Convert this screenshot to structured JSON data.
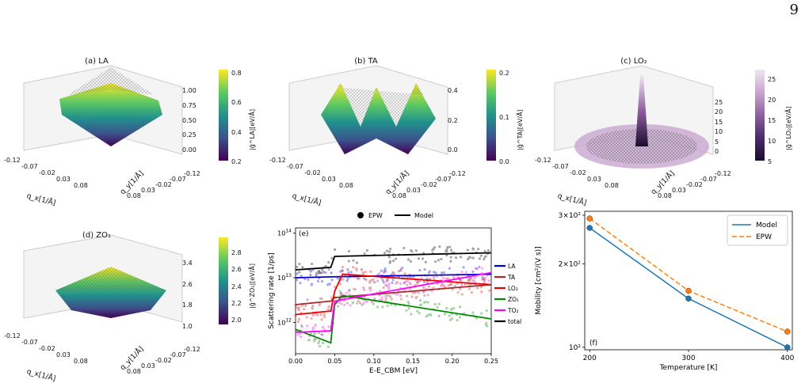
{
  "page_number": "9",
  "colors": {
    "viridis": [
      "#440154",
      "#3b528b",
      "#21918c",
      "#5ec962",
      "#fde725"
    ],
    "purple": [
      "#f0e6f0",
      "#c9a6cf",
      "#8e5fa0",
      "#4b2a6b",
      "#1a0d2e"
    ]
  },
  "panel_a": {
    "title": "(a) LA",
    "z_ticks": [
      "1.00",
      "0.75",
      "0.50",
      "0.25",
      "0.00"
    ],
    "cbar_ticks": [
      "0.8",
      "0.6",
      "0.4",
      "0.2"
    ],
    "cbar_label": "|g̃^LA|[eV/Å]",
    "x_ticks": [
      "-0.12",
      "-0.07",
      "-0.02",
      "0.03",
      "0.08"
    ],
    "y_ticks": [
      "0.08",
      "0.03",
      "-0.02",
      "-0.07",
      "-0.12"
    ],
    "x_label": "q_x[1/Å]",
    "y_label": "q_y[1/Å]"
  },
  "panel_b": {
    "title": "(b) TA",
    "z_ticks": [
      "0.4",
      "0.2",
      "0.0"
    ],
    "cbar_ticks": [
      "0.2",
      "0.1",
      "0.0"
    ],
    "cbar_label": "|g̃^TA|[eV/Å]",
    "x_ticks": [
      "-0.12",
      "-0.07",
      "-0.02",
      "0.03",
      "0.08"
    ],
    "y_ticks": [
      "0.08",
      "0.03",
      "-0.02",
      "-0.07",
      "-0.12"
    ],
    "x_label": "q_x[1/Å]",
    "y_label": "q_y[1/Å]"
  },
  "panel_c": {
    "title": "(c) LO₂",
    "z_ticks": [
      "25",
      "20",
      "15",
      "10",
      "5",
      "0"
    ],
    "cbar_ticks": [
      "25",
      "20",
      "15",
      "10",
      "5"
    ],
    "cbar_label": "|g̃^LO₂|[eV/Å]",
    "x_ticks": [
      "-0.12",
      "-0.07",
      "-0.02",
      "0.03",
      "0.08"
    ],
    "y_ticks": [
      "0.08",
      "0.03",
      "-0.02",
      "-0.07",
      "-0.12"
    ],
    "x_label": "q_x[1/Å]",
    "y_label": "q_y[1/Å]"
  },
  "panel_d": {
    "title": "(d) ZO₁",
    "z_ticks": [
      "3.4",
      "2.6",
      "1.8",
      "1.0"
    ],
    "cbar_ticks": [
      "2.8",
      "2.6",
      "2.4",
      "2.2",
      "2.0"
    ],
    "cbar_label": "|g̃^ZO₁|[eV/Å]",
    "x_ticks": [
      "-0.12",
      "-0.07",
      "-0.02",
      "0.03",
      "0.08"
    ],
    "y_ticks": [
      "0.08",
      "0.03",
      "-0.02",
      "-0.07",
      "-0.12"
    ],
    "x_label": "q_x[1/Å]",
    "y_label": "q_y[1/Å]"
  },
  "chart_data": [
    {
      "type": "scatter",
      "panel_label": "(e)",
      "xlabel": "E-E_CBM [eV]",
      "ylabel": "Scattering rate [1/ps]",
      "xlim": [
        0,
        0.25
      ],
      "ylim": [
        200000000000.0,
        130000000000000.0
      ],
      "yscale": "log",
      "x_ticks": [
        "0.00",
        "0.05",
        "0.10",
        "0.15",
        "0.20",
        "0.25"
      ],
      "y_ticks": [
        "10^12",
        "10^13",
        "10^14"
      ],
      "top_legend": [
        "EPW",
        "Model"
      ],
      "series": [
        {
          "name": "LA",
          "color": "#0000cc",
          "model_x": [
            0,
            0.05,
            0.25
          ],
          "model_y": [
            10000000000000.0,
            10500000000000.0,
            12000000000000.0
          ]
        },
        {
          "name": "TA",
          "color": "#a52a2a",
          "model_x": [
            0,
            0.045,
            0.05,
            0.25
          ],
          "model_y": [
            2500000000000.0,
            3000000000000.0,
            3600000000000.0,
            7000000000000.0
          ]
        },
        {
          "name": "LO₂",
          "color": "#ee0000",
          "model_x": [
            0,
            0.045,
            0.05,
            0.06,
            0.25
          ],
          "model_y": [
            1500000000000.0,
            1800000000000.0,
            5000000000000.0,
            12000000000000.0,
            7000000000000.0
          ]
        },
        {
          "name": "ZO₁",
          "color": "#008800",
          "model_x": [
            0,
            0.045,
            0.05,
            0.06,
            0.25
          ],
          "model_y": [
            700000000000.0,
            350000000000.0,
            2500000000000.0,
            4000000000000.0,
            1200000000000.0
          ]
        },
        {
          "name": "TO₂",
          "color": "#ff00ff",
          "model_x": [
            0,
            0.045,
            0.05,
            0.25
          ],
          "model_y": [
            600000000000.0,
            650000000000.0,
            3000000000000.0,
            13000000000000.0
          ]
        },
        {
          "name": "total",
          "color": "#000000",
          "model_x": [
            0,
            0.045,
            0.05,
            0.25
          ],
          "model_y": [
            15000000000000.0,
            17000000000000.0,
            30000000000000.0,
            36000000000000.0
          ]
        }
      ]
    },
    {
      "type": "line",
      "panel_label": "(f)",
      "xlabel": "Temperature [K]",
      "ylabel": "Mobility [cm²/(V s)]",
      "xlim": [
        195,
        405
      ],
      "ylim": [
        98,
        310
      ],
      "yscale": "log",
      "x_ticks": [
        "200",
        "300",
        "400"
      ],
      "y_ticks": [
        "3×10²",
        "2×10²",
        "10²"
      ],
      "legend_position": "top-right",
      "x": [
        200,
        300,
        400
      ],
      "series": [
        {
          "name": "Model",
          "color": "#1f77b4",
          "dash": "",
          "values": [
            270,
            150,
            100
          ]
        },
        {
          "name": "EPW",
          "color": "#ff7f0e",
          "dash": "6,3",
          "values": [
            292,
            160,
            114
          ]
        }
      ]
    }
  ]
}
